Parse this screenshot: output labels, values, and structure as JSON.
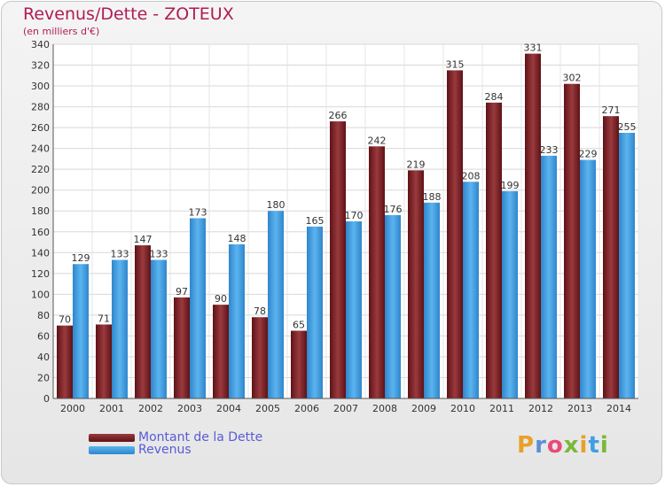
{
  "chart_data": {
    "type": "bar",
    "title": "Revenus/Dette - ZOTEUX",
    "subtitle": "(en milliers d'€)",
    "categories": [
      "2000",
      "2001",
      "2002",
      "2003",
      "2004",
      "2005",
      "2006",
      "2007",
      "2008",
      "2009",
      "2010",
      "2011",
      "2012",
      "2013",
      "2014"
    ],
    "series": [
      {
        "name": "Montant de la Dette",
        "color": "#7a1e22",
        "values": [
          70,
          71,
          147,
          97,
          90,
          78,
          65,
          266,
          242,
          219,
          315,
          284,
          331,
          302,
          271
        ]
      },
      {
        "name": "Revenus",
        "color": "#3e9fe3",
        "values": [
          129,
          133,
          133,
          173,
          148,
          180,
          165,
          170,
          176,
          188,
          208,
          199,
          233,
          229,
          255
        ]
      }
    ],
    "yticks": [
      0,
      20,
      40,
      60,
      80,
      100,
      120,
      140,
      160,
      180,
      200,
      220,
      240,
      260,
      280,
      300,
      320,
      340
    ],
    "ylim": [
      0,
      340
    ],
    "grid": true,
    "legend_position": "bottom-left"
  },
  "brand": {
    "name": "Proxiti",
    "letters": [
      "P",
      "r",
      "o",
      "x",
      "i",
      "t",
      "i"
    ],
    "colors": [
      "#e8a02a",
      "#5a8fd6",
      "#e84a7a",
      "#7ab83a",
      "#e8a02a",
      "#3e9fe3",
      "#7ab83a"
    ]
  }
}
